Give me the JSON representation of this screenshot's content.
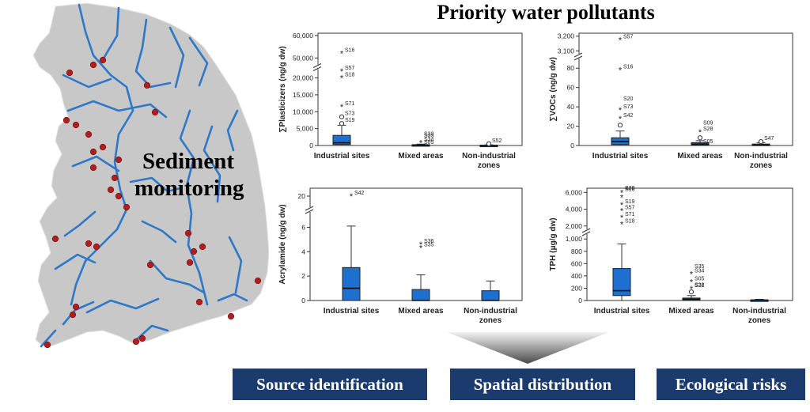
{
  "title": "Priority water pollutants",
  "map": {
    "label_line1": "Sediment",
    "label_line2": "monitoring"
  },
  "outcomes": [
    "Source identification",
    "Spatial distribution",
    "Ecological risks"
  ],
  "colors": {
    "box": "#1d6fd0",
    "river": "#2e78c8",
    "land": "#c8c8c8",
    "site": "#b01e1e",
    "outbox": "#1b3b6f"
  },
  "chart_data": [
    {
      "type": "box",
      "ylabel": "∑Plasticizers (ng/g dw)",
      "categories": [
        "Industrial sites",
        "Mixed areas",
        "Non-industrial zones"
      ],
      "y_ticks": [
        "0",
        "5,000",
        "10,000",
        "15,000",
        "20,000",
        "50,000",
        "60,000"
      ],
      "boxes": [
        {
          "whisker_low": 0,
          "q1": 300,
          "median": 800,
          "q3": 3000,
          "whisker_high": 6000
        },
        {
          "whisker_low": 0,
          "q1": 50,
          "median": 100,
          "q3": 250,
          "whisker_high": 400
        },
        {
          "whisker_low": 0,
          "q1": 0,
          "median": 0,
          "q3": 100,
          "whisker_high": 200
        }
      ],
      "outliers": [
        {
          "cat": 0,
          "y": 52000,
          "label": "S16",
          "mark": "*"
        },
        {
          "cat": 0,
          "y": 22000,
          "label": "S57",
          "mark": "*"
        },
        {
          "cat": 0,
          "y": 20000,
          "label": "S18",
          "mark": "*"
        },
        {
          "cat": 0,
          "y": 11500,
          "label": "S71",
          "mark": "*"
        },
        {
          "cat": 0,
          "y": 8500,
          "label": "S73",
          "mark": "o"
        },
        {
          "cat": 0,
          "y": 6500,
          "label": "S19",
          "mark": "o"
        },
        {
          "cat": 1,
          "y": 2000,
          "label": "S35",
          "mark": ""
        },
        {
          "cat": 1,
          "y": 2500,
          "label": "S33",
          "mark": ""
        },
        {
          "cat": 1,
          "y": 800,
          "label": "S34",
          "mark": "*"
        },
        {
          "cat": 1,
          "y": 0,
          "label": "S05",
          "mark": ""
        },
        {
          "cat": 2,
          "y": 500,
          "label": "S52",
          "mark": "o"
        }
      ]
    },
    {
      "type": "box",
      "ylabel": "∑VOCs (ng/g dw)",
      "categories": [
        "Industrial sites",
        "Mixed areas",
        "Non-industrial zones"
      ],
      "y_ticks": [
        "0",
        "20",
        "40",
        "60",
        "80",
        "3,100",
        "3,200"
      ],
      "boxes": [
        {
          "whisker_low": 0,
          "q1": 1,
          "median": 4,
          "q3": 8,
          "whisker_high": 15
        },
        {
          "whisker_low": 0,
          "q1": 0.5,
          "median": 1.5,
          "q3": 3,
          "whisker_high": 5
        },
        {
          "whisker_low": 0,
          "q1": 0,
          "median": 0.5,
          "q3": 1.5,
          "whisker_high": 3
        }
      ],
      "outliers": [
        {
          "cat": 0,
          "y": 3175,
          "label": "S57",
          "mark": "*"
        },
        {
          "cat": 0,
          "y": 78,
          "label": "S16",
          "mark": "*"
        },
        {
          "cat": 0,
          "y": 45,
          "label": "S20",
          "mark": ""
        },
        {
          "cat": 0,
          "y": 37,
          "label": "S73",
          "mark": "*"
        },
        {
          "cat": 0,
          "y": 28,
          "label": "S42",
          "mark": "*"
        },
        {
          "cat": 0,
          "y": 21,
          "label": "",
          "mark": "o"
        },
        {
          "cat": 1,
          "y": 20,
          "label": "S09",
          "mark": ""
        },
        {
          "cat": 1,
          "y": 14,
          "label": "S28",
          "mark": "*"
        },
        {
          "cat": 1,
          "y": 8,
          "label": "",
          "mark": "o"
        },
        {
          "cat": 1,
          "y": 1,
          "label": "S05",
          "mark": ""
        },
        {
          "cat": 2,
          "y": 4,
          "label": "S47",
          "mark": "o"
        }
      ]
    },
    {
      "type": "box",
      "ylabel": "Acrylamide (ng/g dw)",
      "categories": [
        "Industrial sites",
        "Mixed areas",
        "Non-industrial zones"
      ],
      "y_ticks": [
        "0",
        "2",
        "4",
        "6",
        "20"
      ],
      "boxes": [
        {
          "whisker_low": 0,
          "q1": 0,
          "median": 1,
          "q3": 2.7,
          "whisker_high": 6.1
        },
        {
          "whisker_low": 0,
          "q1": 0,
          "median": 0,
          "q3": 0.9,
          "whisker_high": 2.1
        },
        {
          "whisker_low": 0,
          "q1": 0,
          "median": 0,
          "q3": 0.8,
          "whisker_high": 1.6
        }
      ],
      "outliers": [
        {
          "cat": 0,
          "y": 20,
          "label": "S42",
          "mark": "*"
        },
        {
          "cat": 1,
          "y": 4.6,
          "label": "S36",
          "mark": "*"
        },
        {
          "cat": 1,
          "y": 4.3,
          "label": "S35",
          "mark": "*"
        }
      ]
    },
    {
      "type": "box",
      "ylabel": "TPH (μg/g dw)",
      "categories": [
        "Industrial sites",
        "Mixed areas",
        "Non-industrial zones"
      ],
      "y_ticks": [
        "0",
        "200",
        "400",
        "600",
        "800",
        "1,000",
        "2,000",
        "4,000",
        "6,000"
      ],
      "boxes": [
        {
          "whisker_low": 0,
          "q1": 80,
          "median": 160,
          "q3": 520,
          "whisker_high": 920
        },
        {
          "whisker_low": 0,
          "q1": 10,
          "median": 20,
          "q3": 40,
          "whisker_high": 80
        },
        {
          "whisker_low": 0,
          "q1": 0,
          "median": 5,
          "q3": 10,
          "whisker_high": 20
        }
      ],
      "outliers": [
        {
          "cat": 0,
          "y": 6000,
          "label": "S16",
          "mark": "*"
        },
        {
          "cat": 0,
          "y": 6100,
          "label": "S20",
          "mark": ""
        },
        {
          "cat": 0,
          "y": 5400,
          "label": "",
          "mark": "*"
        },
        {
          "cat": 0,
          "y": 4500,
          "label": "S19",
          "mark": "*"
        },
        {
          "cat": 0,
          "y": 3800,
          "label": "S57",
          "mark": "*"
        },
        {
          "cat": 0,
          "y": 3000,
          "label": "S71",
          "mark": "*"
        },
        {
          "cat": 0,
          "y": 2200,
          "label": "S18",
          "mark": "*"
        },
        {
          "cat": 1,
          "y": 500,
          "label": "S35",
          "mark": ""
        },
        {
          "cat": 1,
          "y": 430,
          "label": "S34",
          "mark": "*"
        },
        {
          "cat": 1,
          "y": 300,
          "label": "S05",
          "mark": "*"
        },
        {
          "cat": 1,
          "y": 200,
          "label": "S22",
          "mark": ""
        },
        {
          "cat": 1,
          "y": 190,
          "label": "S36",
          "mark": "*"
        },
        {
          "cat": 1,
          "y": 140,
          "label": "",
          "mark": "o"
        }
      ]
    }
  ]
}
